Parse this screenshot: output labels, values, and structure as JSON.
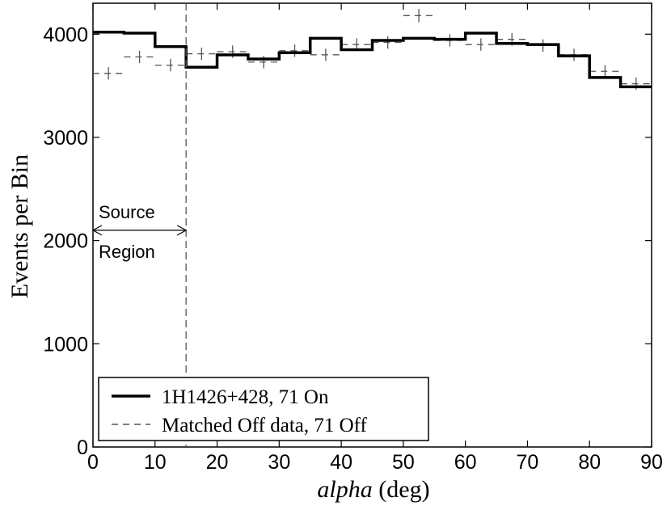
{
  "chart_data": {
    "type": "line",
    "title": "",
    "xlabel_italic": "alpha",
    "xlabel_rest": " (deg)",
    "ylabel": "Events per Bin",
    "xlim": [
      0,
      90
    ],
    "ylim": [
      0,
      4300
    ],
    "xticks": [
      0,
      10,
      20,
      30,
      40,
      50,
      60,
      70,
      80,
      90
    ],
    "yticks": [
      0,
      1000,
      2000,
      3000,
      4000
    ],
    "bin_edges": [
      0,
      5,
      10,
      15,
      20,
      25,
      30,
      35,
      40,
      45,
      50,
      55,
      60,
      65,
      70,
      75,
      80,
      85,
      90
    ],
    "series": [
      {
        "name": "1H1426+428, 71 On",
        "style": "solid-thick",
        "values": [
          4020,
          4010,
          3880,
          3680,
          3800,
          3760,
          3820,
          3960,
          3850,
          3940,
          3960,
          3950,
          4010,
          3910,
          3900,
          3790,
          3580,
          3490
        ]
      },
      {
        "name": "Matched Off data, 71 Off",
        "style": "dashed-with-errorbars",
        "values": [
          3620,
          3780,
          3700,
          3810,
          3830,
          3730,
          3840,
          3800,
          3900,
          3920,
          4180,
          3940,
          3900,
          3950,
          3890,
          3800,
          3640,
          3520
        ],
        "errors": [
          60,
          60,
          60,
          60,
          60,
          60,
          60,
          60,
          60,
          60,
          65,
          60,
          60,
          60,
          60,
          60,
          60,
          60
        ]
      }
    ],
    "cut_line_x": 15,
    "annotation": {
      "line1": "Source",
      "line2": "Region",
      "arrow_from_x": 0,
      "arrow_to_x": 15,
      "arrow_y": 2100
    },
    "legend_position": "bottom-left",
    "grid": false
  }
}
